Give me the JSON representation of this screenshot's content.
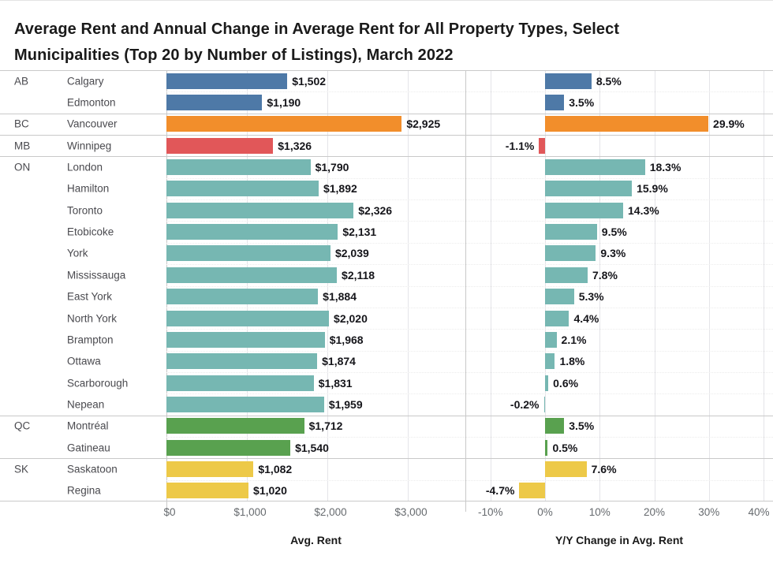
{
  "title_line1": "Average Rent and Annual Change in Average Rent for All Property Types, Select",
  "title_line2": "Municipalities (Top 20 by Number of Listings), March 2022",
  "chart_data": {
    "type": "bar",
    "orientation": "horizontal",
    "grid": true,
    "panels": [
      {
        "title": "Avg. Rent",
        "field": "rent",
        "tick_labels": [
          "$0",
          "$1,000",
          "$2,000",
          "$3,000"
        ],
        "tick_values": [
          0,
          1000,
          2000,
          3000
        ],
        "xlim": [
          0,
          3716
        ]
      },
      {
        "title": "Y/Y Change in Avg. Rent",
        "field": "change",
        "tick_labels": [
          "-10%",
          "0%",
          "10%",
          "20%",
          "30%",
          "40%"
        ],
        "tick_values": [
          -10,
          0,
          10,
          20,
          30,
          40
        ],
        "xlim": [
          -14.6,
          41.8
        ]
      }
    ],
    "groups": [
      {
        "province": "AB",
        "color": "#4e79a7",
        "rows": [
          {
            "municipality": "Calgary",
            "rent": 1502,
            "rent_label": "$1,502",
            "change": 8.5,
            "change_label": "8.5%"
          },
          {
            "municipality": "Edmonton",
            "rent": 1190,
            "rent_label": "$1,190",
            "change": 3.5,
            "change_label": "3.5%"
          }
        ]
      },
      {
        "province": "BC",
        "color": "#f28e2b",
        "rows": [
          {
            "municipality": "Vancouver",
            "rent": 2925,
            "rent_label": "$2,925",
            "change": 29.9,
            "change_label": "29.9%"
          }
        ]
      },
      {
        "province": "MB",
        "color": "#e15759",
        "rows": [
          {
            "municipality": "Winnipeg",
            "rent": 1326,
            "rent_label": "$1,326",
            "change": -1.1,
            "change_label": "-1.1%"
          }
        ]
      },
      {
        "province": "ON",
        "color": "#76b7b2",
        "rows": [
          {
            "municipality": "London",
            "rent": 1790,
            "rent_label": "$1,790",
            "change": 18.3,
            "change_label": "18.3%"
          },
          {
            "municipality": "Hamilton",
            "rent": 1892,
            "rent_label": "$1,892",
            "change": 15.9,
            "change_label": "15.9%"
          },
          {
            "municipality": "Toronto",
            "rent": 2326,
            "rent_label": "$2,326",
            "change": 14.3,
            "change_label": "14.3%"
          },
          {
            "municipality": "Etobicoke",
            "rent": 2131,
            "rent_label": "$2,131",
            "change": 9.5,
            "change_label": "9.5%"
          },
          {
            "municipality": "York",
            "rent": 2039,
            "rent_label": "$2,039",
            "change": 9.3,
            "change_label": "9.3%"
          },
          {
            "municipality": "Mississauga",
            "rent": 2118,
            "rent_label": "$2,118",
            "change": 7.8,
            "change_label": "7.8%"
          },
          {
            "municipality": "East York",
            "rent": 1884,
            "rent_label": "$1,884",
            "change": 5.3,
            "change_label": "5.3%"
          },
          {
            "municipality": "North York",
            "rent": 2020,
            "rent_label": "$2,020",
            "change": 4.4,
            "change_label": "4.4%"
          },
          {
            "municipality": "Brampton",
            "rent": 1968,
            "rent_label": "$1,968",
            "change": 2.1,
            "change_label": "2.1%"
          },
          {
            "municipality": "Ottawa",
            "rent": 1874,
            "rent_label": "$1,874",
            "change": 1.8,
            "change_label": "1.8%"
          },
          {
            "municipality": "Scarborough",
            "rent": 1831,
            "rent_label": "$1,831",
            "change": 0.6,
            "change_label": "0.6%"
          },
          {
            "municipality": "Nepean",
            "rent": 1959,
            "rent_label": "$1,959",
            "change": -0.2,
            "change_label": "-0.2%"
          }
        ]
      },
      {
        "province": "QC",
        "color": "#59a14f",
        "rows": [
          {
            "municipality": "Montréal",
            "rent": 1712,
            "rent_label": "$1,712",
            "change": 3.5,
            "change_label": "3.5%"
          },
          {
            "municipality": "Gatineau",
            "rent": 1540,
            "rent_label": "$1,540",
            "change": 0.5,
            "change_label": "0.5%"
          }
        ]
      },
      {
        "province": "SK",
        "color": "#edc948",
        "rows": [
          {
            "municipality": "Saskatoon",
            "rent": 1082,
            "rent_label": "$1,082",
            "change": 7.6,
            "change_label": "7.6%"
          },
          {
            "municipality": "Regina",
            "rent": 1020,
            "rent_label": "$1,020",
            "change": -4.7,
            "change_label": "-4.7%"
          }
        ]
      }
    ]
  }
}
